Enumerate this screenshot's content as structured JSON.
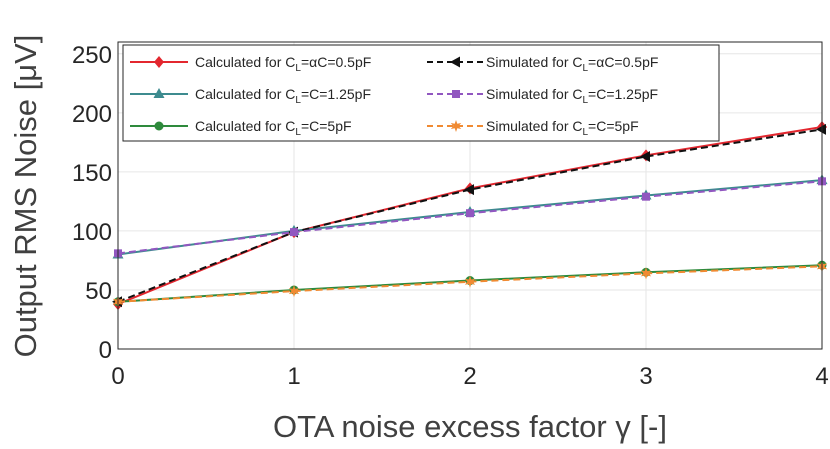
{
  "chart_data": {
    "type": "line",
    "xlabel": "OTA noise excess factor γ [-]",
    "ylabel": "Output RMS Noise [μV]",
    "x": [
      0,
      1,
      2,
      3,
      4
    ],
    "xlim": [
      0,
      4
    ],
    "ylim": [
      0,
      260
    ],
    "xticks": [
      0,
      1,
      2,
      3,
      4
    ],
    "yticks": [
      0,
      50,
      100,
      150,
      200,
      250
    ],
    "grid": true,
    "legend_position": "top",
    "series": [
      {
        "name": "Calculated for CL=αC=0.5pF",
        "label_parts": [
          "Calculated for C",
          "L",
          "=αC=0.5pF"
        ],
        "values": [
          38,
          99,
          136,
          164,
          188
        ],
        "color": "#e3272f",
        "dash": "solid",
        "marker": "diamond"
      },
      {
        "name": "Simulated for CL=αC=0.5pF",
        "label_parts": [
          "Simulated for C",
          "L",
          "=αC=0.5pF"
        ],
        "values": [
          40,
          99,
          135,
          163,
          186
        ],
        "color": "#111111",
        "dash": "dashed",
        "marker": "triangle-left"
      },
      {
        "name": "Calculated for CL=C=1.25pF",
        "label_parts": [
          "Calculated for C",
          "L",
          "=C=1.25pF"
        ],
        "values": [
          80,
          100,
          116,
          130,
          143
        ],
        "color": "#3d8b8f",
        "dash": "solid",
        "marker": "triangle-up"
      },
      {
        "name": "Simulated for CL=C=1.25pF",
        "label_parts": [
          "Simulated for C",
          "L",
          "=C=1.25pF"
        ],
        "values": [
          81,
          99,
          115,
          129,
          142
        ],
        "color": "#9157c0",
        "dash": "dashed",
        "marker": "square"
      },
      {
        "name": "Calculated for CL=C=5pF",
        "label_parts": [
          "Calculated for C",
          "L",
          "=C=5pF"
        ],
        "values": [
          40,
          50,
          58,
          65,
          71
        ],
        "color": "#2e8a3c",
        "dash": "solid",
        "marker": "circle"
      },
      {
        "name": "Simulated for CL=C=5pF",
        "label_parts": [
          "Simulated for C",
          "L",
          "=C=5pF"
        ],
        "values": [
          40,
          49,
          57,
          64,
          70
        ],
        "color": "#f08a32",
        "dash": "dashed",
        "marker": "star"
      }
    ]
  }
}
